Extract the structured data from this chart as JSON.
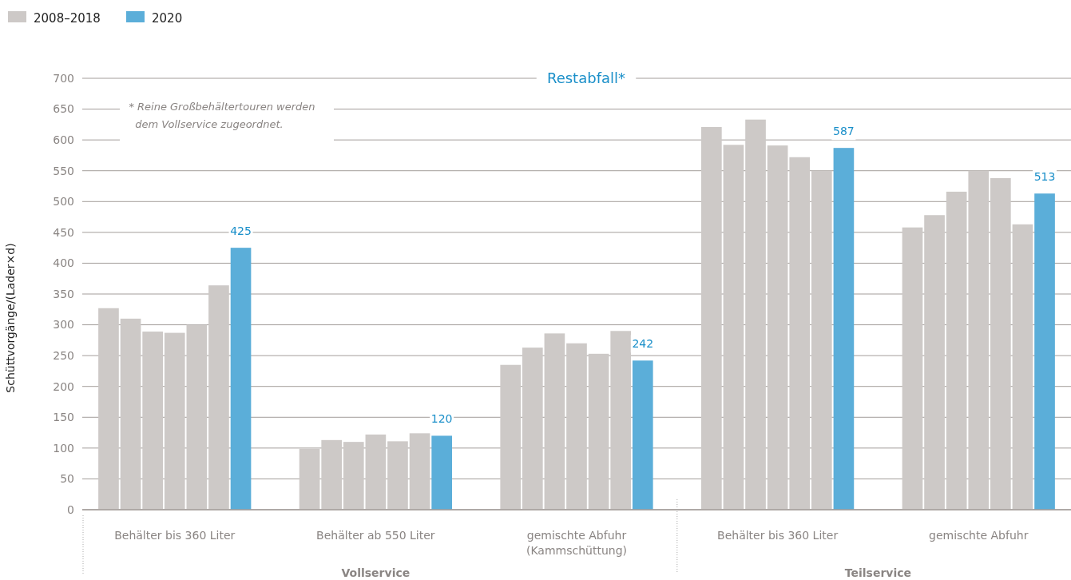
{
  "chart_data": {
    "type": "bar",
    "title": "Restabfall*",
    "ylabel": "Schüttvorgänge/(Lader×d)",
    "categories": [
      "Behälter bis 360 Liter",
      "Behälter ab 550 Liter",
      "gemischte Abfuhr (Kammschüttung)",
      "Behälter bis 360 Liter",
      "gemischte Abfuhr"
    ],
    "series": [
      {
        "name": "2008–2018",
        "color": "#cdc9c7",
        "values": [
          327,
          99,
          235,
          621,
          458
        ]
      },
      {
        "color": "#cdc9c7",
        "values": [
          310,
          113,
          263,
          592,
          478
        ]
      },
      {
        "color": "#cdc9c7",
        "values": [
          289,
          110,
          286,
          633,
          516
        ]
      },
      {
        "color": "#cdc9c7",
        "values": [
          287,
          122,
          270,
          591,
          550
        ]
      },
      {
        "color": "#cdc9c7",
        "values": [
          300,
          111,
          253,
          572,
          538
        ]
      },
      {
        "color": "#cdc9c7",
        "values": [
          364,
          124,
          290,
          550,
          463
        ]
      },
      {
        "name": "2020",
        "color": "#5baed9",
        "values": [
          425,
          120,
          242,
          587,
          513
        ],
        "value_labels": [
          "425",
          "120",
          "242",
          "587",
          "513"
        ]
      }
    ],
    "ylim": [
      0,
      700
    ],
    "yticks": [
      0,
      50,
      100,
      150,
      200,
      250,
      300,
      350,
      400,
      450,
      500,
      550,
      600,
      650,
      700
    ],
    "grid": "y",
    "legend": "top left",
    "annotations": [
      "* Reine Großbehältertouren werden dem Vollservice zugeordnet.",
      "Vollservice",
      "Teilservice"
    ]
  }
}
